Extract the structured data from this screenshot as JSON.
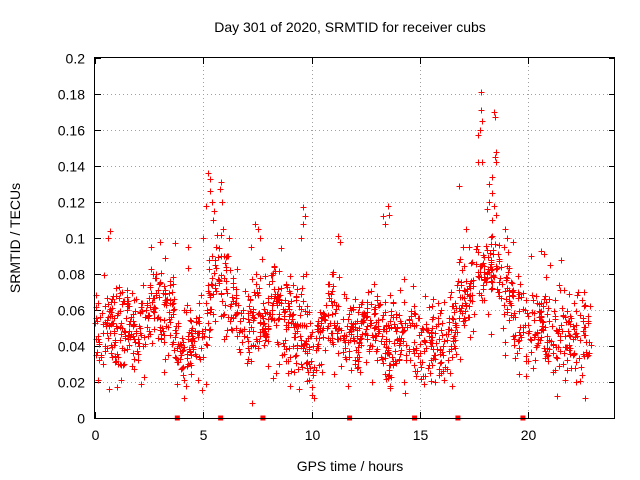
{
  "chart_data": {
    "type": "scatter",
    "title": "Day 301 of 2020, SRMTID for receiver cubs",
    "xlabel": "GPS time / hours",
    "ylabel": "SRMTID / TECUs",
    "xlim": [
      0,
      24
    ],
    "ylim": [
      0,
      0.2
    ],
    "grid": true,
    "marker": "+",
    "color": "#ff0000",
    "x_ticks": [
      0,
      5,
      10,
      15,
      20
    ],
    "x_tick_labels": [
      "0",
      "5",
      "10",
      "15",
      "20"
    ],
    "y_ticks": [
      0,
      0.02,
      0.04,
      0.06,
      0.08,
      0.1,
      0.12,
      0.14,
      0.16,
      0.18,
      0.2
    ],
    "y_tick_labels": [
      "0",
      "0.02",
      "0.04",
      "0.06",
      "0.08",
      "0.1",
      "0.12",
      "0.14",
      "0.16",
      "0.18",
      "0.2"
    ],
    "zero_markers_x": [
      3.8,
      5.8,
      7.75,
      11.75,
      14.75,
      16.75,
      19.75
    ],
    "time_range_hours": [
      0,
      22.9
    ],
    "baseline_profile": [
      [
        0.0,
        0.045
      ],
      [
        0.5,
        0.055
      ],
      [
        1.0,
        0.048
      ],
      [
        1.5,
        0.05
      ],
      [
        2.0,
        0.045
      ],
      [
        2.5,
        0.06
      ],
      [
        3.0,
        0.068
      ],
      [
        3.5,
        0.06
      ],
      [
        4.0,
        0.035
      ],
      [
        4.5,
        0.045
      ],
      [
        5.0,
        0.045
      ],
      [
        5.3,
        0.065
      ],
      [
        5.6,
        0.08
      ],
      [
        6.0,
        0.07
      ],
      [
        6.5,
        0.055
      ],
      [
        7.0,
        0.05
      ],
      [
        7.5,
        0.06
      ],
      [
        8.0,
        0.058
      ],
      [
        8.5,
        0.055
      ],
      [
        9.0,
        0.055
      ],
      [
        9.5,
        0.05
      ],
      [
        10.0,
        0.038
      ],
      [
        10.5,
        0.05
      ],
      [
        11.0,
        0.06
      ],
      [
        11.5,
        0.048
      ],
      [
        12.0,
        0.045
      ],
      [
        12.5,
        0.048
      ],
      [
        13.0,
        0.05
      ],
      [
        13.5,
        0.042
      ],
      [
        14.0,
        0.045
      ],
      [
        14.5,
        0.048
      ],
      [
        15.0,
        0.04
      ],
      [
        15.5,
        0.045
      ],
      [
        16.0,
        0.04
      ],
      [
        16.5,
        0.045
      ],
      [
        17.0,
        0.065
      ],
      [
        17.5,
        0.07
      ],
      [
        18.0,
        0.085
      ],
      [
        18.5,
        0.08
      ],
      [
        19.0,
        0.065
      ],
      [
        19.5,
        0.055
      ],
      [
        20.0,
        0.05
      ],
      [
        20.5,
        0.052
      ],
      [
        21.0,
        0.045
      ],
      [
        21.5,
        0.05
      ],
      [
        22.0,
        0.045
      ],
      [
        22.5,
        0.045
      ],
      [
        22.9,
        0.05
      ]
    ],
    "noise_std": 0.012,
    "point_count": 1500,
    "notable_points": [
      [
        17.8,
        0.181
      ],
      [
        17.8,
        0.171
      ],
      [
        17.85,
        0.165
      ],
      [
        17.75,
        0.16
      ],
      [
        17.7,
        0.157
      ],
      [
        18.4,
        0.17
      ],
      [
        18.45,
        0.167
      ],
      [
        18.5,
        0.148
      ],
      [
        18.45,
        0.145
      ],
      [
        18.5,
        0.142
      ],
      [
        17.7,
        0.142
      ],
      [
        17.85,
        0.142
      ],
      [
        18.3,
        0.134
      ],
      [
        18.2,
        0.13
      ],
      [
        18.3,
        0.125
      ],
      [
        18.2,
        0.12
      ],
      [
        18.1,
        0.116
      ],
      [
        18.4,
        0.118
      ],
      [
        18.5,
        0.113
      ],
      [
        18.3,
        0.11
      ],
      [
        16.8,
        0.129
      ],
      [
        17.0,
        0.095
      ],
      [
        17.1,
        0.105
      ],
      [
        18.9,
        0.105
      ],
      [
        19.0,
        0.1
      ],
      [
        5.2,
        0.136
      ],
      [
        5.3,
        0.133
      ],
      [
        5.3,
        0.126
      ],
      [
        5.4,
        0.12
      ],
      [
        5.5,
        0.115
      ],
      [
        5.45,
        0.11
      ],
      [
        5.8,
        0.131
      ],
      [
        5.75,
        0.127
      ],
      [
        5.85,
        0.12
      ],
      [
        5.9,
        0.105
      ],
      [
        6.2,
        0.1
      ],
      [
        5.1,
        0.118
      ],
      [
        5.0,
        0.1
      ],
      [
        7.4,
        0.108
      ],
      [
        7.5,
        0.105
      ],
      [
        7.6,
        0.1
      ],
      [
        9.6,
        0.117
      ],
      [
        9.7,
        0.112
      ],
      [
        9.6,
        0.108
      ],
      [
        9.5,
        0.1
      ],
      [
        11.2,
        0.101
      ],
      [
        11.3,
        0.098
      ],
      [
        13.5,
        0.118
      ],
      [
        13.55,
        0.113
      ],
      [
        13.3,
        0.112
      ],
      [
        13.4,
        0.108
      ],
      [
        0.7,
        0.104
      ],
      [
        0.6,
        0.1
      ],
      [
        3.0,
        0.098
      ],
      [
        2.6,
        0.095
      ],
      [
        3.7,
        0.097
      ],
      [
        4.3,
        0.095
      ],
      [
        20.6,
        0.093
      ],
      [
        20.7,
        0.091
      ],
      [
        21.5,
        0.088
      ],
      [
        20.1,
        0.09
      ],
      [
        19.3,
        0.098
      ],
      [
        21.0,
        0.085
      ],
      [
        22.3,
        0.07
      ],
      [
        1.0,
        0.017
      ],
      [
        0.65,
        0.016
      ],
      [
        3.8,
        0.019
      ],
      [
        10.0,
        0.013
      ],
      [
        10.1,
        0.011
      ],
      [
        9.4,
        0.016
      ],
      [
        14.3,
        0.014
      ],
      [
        21.3,
        0.012
      ],
      [
        22.6,
        0.011
      ],
      [
        16.1,
        0.021
      ],
      [
        5.1,
        0.019
      ],
      [
        2.1,
        0.019
      ],
      [
        12.8,
        0.02
      ],
      [
        15.2,
        0.019
      ],
      [
        4.1,
        0.021
      ],
      [
        18.9,
        0.035
      ],
      [
        20.2,
        0.028
      ],
      [
        8.5,
        0.03
      ]
    ]
  }
}
